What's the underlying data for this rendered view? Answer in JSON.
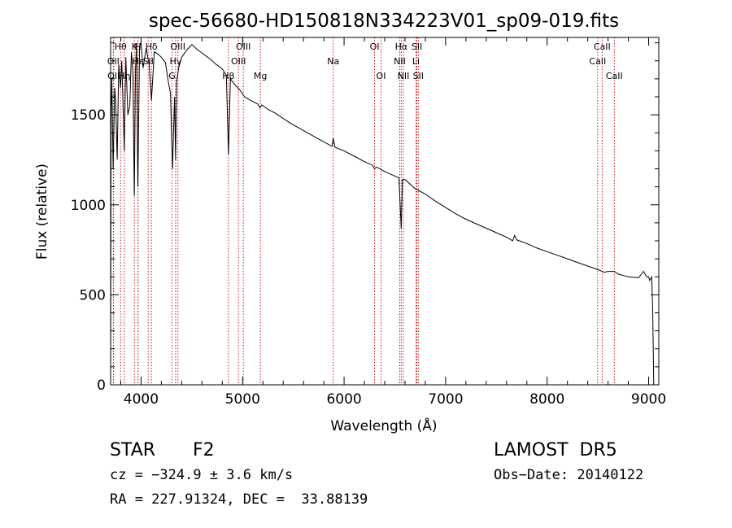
{
  "chart_data": {
    "type": "line",
    "title": "spec-56680-HD150818N334223V01_sp09-019.fits",
    "xlabel": "Wavelength (Å)",
    "ylabel": "Flux (relative)",
    "xlim": [
      3700,
      9100
    ],
    "ylim": [
      0,
      1930
    ],
    "xticks": [
      4000,
      5000,
      6000,
      7000,
      8000,
      9000
    ],
    "yticks": [
      0,
      500,
      1000,
      1500
    ],
    "grid": false,
    "series": [
      {
        "x": [
          3700,
          3705,
          3712,
          3725,
          3740,
          3750,
          3765,
          3780,
          3798,
          3810,
          3820,
          3835,
          3850,
          3870,
          3889,
          3905,
          3920,
          3933,
          3945,
          3955,
          3968,
          3985,
          4000,
          4020,
          4050,
          4080,
          4102,
          4130,
          4160,
          4200,
          4240,
          4270,
          4290,
          4310,
          4330,
          4340,
          4350,
          4370,
          4400,
          4450,
          4500,
          4560,
          4620,
          4680,
          4740,
          4800,
          4840,
          4861,
          4880,
          4920,
          4970,
          5020,
          5080,
          5150,
          5172,
          5190,
          5250,
          5320,
          5400,
          5480,
          5560,
          5640,
          5720,
          5800,
          5880,
          5893,
          5910,
          6000,
          6100,
          6200,
          6280,
          6300,
          6320,
          6400,
          6500,
          6540,
          6563,
          6575,
          6600,
          6700,
          6800,
          6900,
          7000,
          7100,
          7200,
          7300,
          7400,
          7500,
          7600,
          7660,
          7680,
          7700,
          7800,
          7900,
          8000,
          8100,
          8200,
          8300,
          8400,
          8500,
          8542,
          8560,
          8600,
          8662,
          8700,
          8800,
          8900,
          8950,
          8980,
          9000,
          9010,
          9030,
          9040,
          9050
        ],
        "y": [
          0,
          1500,
          1700,
          1200,
          1650,
          1580,
          1250,
          1780,
          1650,
          1800,
          1600,
          1300,
          1820,
          1500,
          1550,
          1850,
          1720,
          1050,
          1750,
          1900,
          1100,
          1880,
          1900,
          1760,
          1870,
          1780,
          1580,
          1850,
          1840,
          1820,
          1790,
          1680,
          1620,
          1200,
          1600,
          1250,
          1680,
          1760,
          1820,
          1860,
          1890,
          1860,
          1835,
          1810,
          1780,
          1755,
          1720,
          1280,
          1700,
          1670,
          1640,
          1600,
          1580,
          1560,
          1540,
          1555,
          1530,
          1510,
          1480,
          1450,
          1425,
          1400,
          1375,
          1350,
          1325,
          1370,
          1320,
          1300,
          1270,
          1240,
          1220,
          1200,
          1210,
          1185,
          1160,
          1150,
          870,
          1140,
          1140,
          1090,
          1060,
          1020,
          985,
          950,
          920,
          895,
          870,
          845,
          820,
          800,
          830,
          805,
          785,
          760,
          740,
          720,
          700,
          680,
          660,
          640,
          630,
          625,
          630,
          630,
          615,
          600,
          595,
          630,
          600,
          600,
          580,
          600,
          420,
          0
        ]
      }
    ],
    "line_markers": [
      {
        "label": "Hθ",
        "x": 3798,
        "row": 0
      },
      {
        "label": "OII",
        "x": 3727,
        "row": 1
      },
      {
        "label": "OII",
        "x": 3730,
        "row": 2
      },
      {
        "label": "Hη",
        "x": 3835,
        "row": 2
      },
      {
        "label": "K",
        "x": 3934,
        "row": 0
      },
      {
        "label": "H",
        "x": 3969,
        "row": 0
      },
      {
        "label": "Hε",
        "x": 3970,
        "row": 1
      },
      {
        "label": "SII",
        "x": 4070,
        "row": 1
      },
      {
        "label": "Hδ",
        "x": 4102,
        "row": 0
      },
      {
        "label": "OIII",
        "x": 4363,
        "row": 0
      },
      {
        "label": "Hγ",
        "x": 4340,
        "row": 1
      },
      {
        "label": "G",
        "x": 4305,
        "row": 2
      },
      {
        "label": "OIII",
        "x": 5007,
        "row": 0
      },
      {
        "label": "OIII",
        "x": 4959,
        "row": 1
      },
      {
        "label": "Hβ",
        "x": 4861,
        "row": 2
      },
      {
        "label": "Mg",
        "x": 5175,
        "row": 2
      },
      {
        "label": "Na",
        "x": 5893,
        "row": 1
      },
      {
        "label": "OI",
        "x": 6300,
        "row": 0
      },
      {
        "label": "OI",
        "x": 6364,
        "row": 2
      },
      {
        "label": "Hα",
        "x": 6563,
        "row": 0
      },
      {
        "label": "NII",
        "x": 6548,
        "row": 1
      },
      {
        "label": "NII",
        "x": 6584,
        "row": 2
      },
      {
        "label": "SII",
        "x": 6717,
        "row": 0
      },
      {
        "label": "Li",
        "x": 6708,
        "row": 1
      },
      {
        "label": "SII",
        "x": 6731,
        "row": 2
      },
      {
        "label": "CaII",
        "x": 8542,
        "row": 0
      },
      {
        "label": "CaII",
        "x": 8498,
        "row": 1
      },
      {
        "label": "CaII",
        "x": 8662,
        "row": 2
      }
    ],
    "line_color": "#000000",
    "marker_color": "#cc0000"
  },
  "info": {
    "object_type": "STAR",
    "subclass": "F2",
    "survey": "LAMOST  DR5",
    "cz": "cz = −324.9 ± 3.6 km/s",
    "obs_date": "Obs−Date: 20140122",
    "coords": "RA = 227.91324, DEC =  33.88139"
  }
}
